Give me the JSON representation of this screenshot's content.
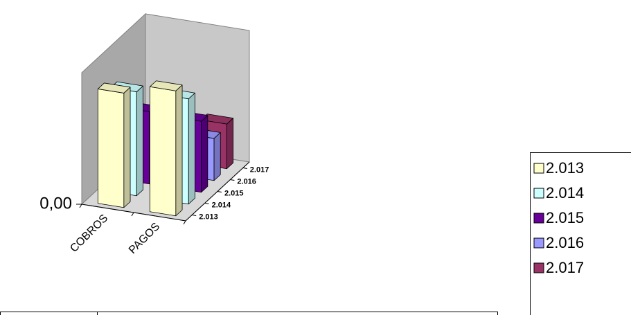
{
  "chart_data": {
    "type": "bar3d",
    "categories": [
      "COBROS",
      "PAGOS"
    ],
    "series": [
      {
        "name": "2.013",
        "color": "#ffffcc",
        "values": [
          87,
          95
        ]
      },
      {
        "name": "2.014",
        "color": "#ccffff",
        "values": [
          79,
          80
        ]
      },
      {
        "name": "2.015",
        "color": "#660099",
        "values": [
          55,
          54
        ]
      },
      {
        "name": "2.016",
        "color": "#9999ff",
        "values": [
          0,
          32
        ]
      },
      {
        "name": "2.017",
        "color": "#993366",
        "values": [
          0,
          34
        ]
      }
    ],
    "ylim": [
      0,
      100
    ],
    "yticks": [
      {
        "value": 0,
        "label": "0,00"
      }
    ],
    "legend": "right"
  }
}
